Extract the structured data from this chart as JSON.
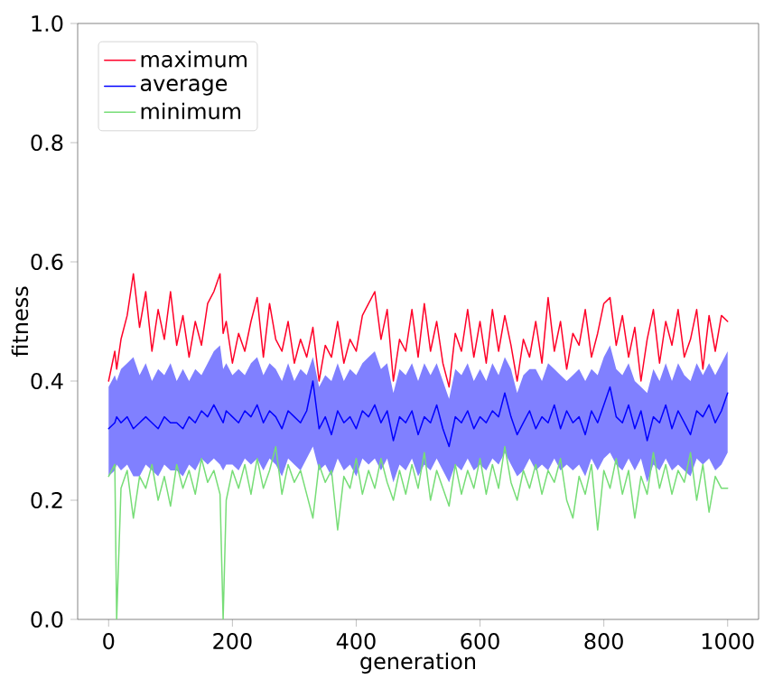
{
  "chart_data": {
    "type": "line",
    "xlabel": "generation",
    "ylabel": "fitness",
    "x": [
      0,
      10,
      13,
      20,
      30,
      40,
      50,
      60,
      70,
      80,
      90,
      100,
      110,
      120,
      130,
      140,
      150,
      160,
      170,
      180,
      185,
      190,
      200,
      210,
      220,
      230,
      240,
      250,
      260,
      270,
      280,
      290,
      300,
      310,
      320,
      330,
      340,
      350,
      360,
      370,
      380,
      390,
      400,
      410,
      420,
      430,
      440,
      450,
      460,
      470,
      480,
      490,
      500,
      510,
      520,
      530,
      540,
      550,
      560,
      570,
      580,
      590,
      600,
      610,
      620,
      630,
      640,
      650,
      660,
      670,
      680,
      690,
      700,
      710,
      720,
      730,
      740,
      750,
      760,
      770,
      780,
      790,
      800,
      810,
      820,
      830,
      840,
      850,
      860,
      870,
      880,
      890,
      900,
      910,
      920,
      930,
      940,
      950,
      960,
      970,
      980,
      990,
      1000
    ],
    "series": [
      {
        "name": "maximum",
        "color": "#ff0028",
        "values": [
          0.4,
          0.45,
          0.42,
          0.47,
          0.51,
          0.58,
          0.49,
          0.55,
          0.45,
          0.52,
          0.47,
          0.55,
          0.46,
          0.51,
          0.44,
          0.5,
          0.46,
          0.53,
          0.55,
          0.58,
          0.48,
          0.5,
          0.43,
          0.48,
          0.45,
          0.5,
          0.54,
          0.44,
          0.53,
          0.47,
          0.45,
          0.5,
          0.43,
          0.47,
          0.44,
          0.49,
          0.4,
          0.46,
          0.44,
          0.5,
          0.43,
          0.47,
          0.45,
          0.51,
          0.53,
          0.55,
          0.47,
          0.52,
          0.4,
          0.47,
          0.45,
          0.52,
          0.44,
          0.53,
          0.45,
          0.5,
          0.43,
          0.39,
          0.48,
          0.45,
          0.52,
          0.44,
          0.5,
          0.43,
          0.52,
          0.45,
          0.51,
          0.46,
          0.4,
          0.47,
          0.44,
          0.5,
          0.43,
          0.54,
          0.45,
          0.5,
          0.42,
          0.48,
          0.46,
          0.52,
          0.44,
          0.48,
          0.53,
          0.54,
          0.46,
          0.51,
          0.44,
          0.49,
          0.4,
          0.47,
          0.52,
          0.43,
          0.5,
          0.46,
          0.52,
          0.44,
          0.47,
          0.52,
          0.42,
          0.51,
          0.45,
          0.51,
          0.5
        ]
      },
      {
        "name": "average",
        "color": "#0000ff",
        "values": [
          0.32,
          0.33,
          0.34,
          0.33,
          0.34,
          0.32,
          0.33,
          0.34,
          0.33,
          0.32,
          0.34,
          0.33,
          0.33,
          0.32,
          0.34,
          0.33,
          0.35,
          0.34,
          0.36,
          0.34,
          0.33,
          0.35,
          0.34,
          0.33,
          0.35,
          0.34,
          0.36,
          0.33,
          0.35,
          0.34,
          0.32,
          0.35,
          0.34,
          0.33,
          0.35,
          0.4,
          0.32,
          0.34,
          0.31,
          0.35,
          0.33,
          0.34,
          0.32,
          0.35,
          0.34,
          0.36,
          0.33,
          0.35,
          0.3,
          0.34,
          0.33,
          0.35,
          0.31,
          0.34,
          0.33,
          0.36,
          0.32,
          0.29,
          0.34,
          0.33,
          0.35,
          0.32,
          0.34,
          0.33,
          0.35,
          0.34,
          0.38,
          0.34,
          0.31,
          0.33,
          0.35,
          0.32,
          0.34,
          0.33,
          0.36,
          0.32,
          0.35,
          0.33,
          0.34,
          0.31,
          0.35,
          0.33,
          0.36,
          0.39,
          0.34,
          0.33,
          0.36,
          0.32,
          0.35,
          0.3,
          0.34,
          0.33,
          0.36,
          0.32,
          0.35,
          0.33,
          0.31,
          0.35,
          0.34,
          0.36,
          0.33,
          0.35,
          0.38
        ],
        "lower": [
          0.24,
          0.25,
          0.26,
          0.25,
          0.26,
          0.24,
          0.24,
          0.26,
          0.25,
          0.24,
          0.26,
          0.25,
          0.25,
          0.24,
          0.26,
          0.25,
          0.27,
          0.26,
          0.27,
          0.26,
          0.25,
          0.26,
          0.26,
          0.25,
          0.27,
          0.26,
          0.27,
          0.25,
          0.27,
          0.26,
          0.24,
          0.27,
          0.26,
          0.25,
          0.27,
          0.29,
          0.25,
          0.26,
          0.24,
          0.27,
          0.25,
          0.26,
          0.24,
          0.27,
          0.26,
          0.27,
          0.25,
          0.27,
          0.23,
          0.26,
          0.25,
          0.27,
          0.24,
          0.26,
          0.25,
          0.27,
          0.25,
          0.23,
          0.26,
          0.25,
          0.27,
          0.25,
          0.26,
          0.25,
          0.27,
          0.26,
          0.28,
          0.26,
          0.24,
          0.25,
          0.27,
          0.25,
          0.26,
          0.25,
          0.27,
          0.25,
          0.26,
          0.25,
          0.26,
          0.24,
          0.27,
          0.25,
          0.27,
          0.28,
          0.26,
          0.25,
          0.27,
          0.25,
          0.27,
          0.23,
          0.26,
          0.25,
          0.27,
          0.25,
          0.26,
          0.25,
          0.24,
          0.27,
          0.26,
          0.27,
          0.25,
          0.26,
          0.28
        ],
        "upper": [
          0.39,
          0.41,
          0.4,
          0.42,
          0.43,
          0.44,
          0.41,
          0.43,
          0.4,
          0.42,
          0.41,
          0.43,
          0.4,
          0.42,
          0.4,
          0.42,
          0.41,
          0.43,
          0.45,
          0.46,
          0.42,
          0.43,
          0.41,
          0.42,
          0.41,
          0.43,
          0.44,
          0.41,
          0.43,
          0.42,
          0.4,
          0.43,
          0.4,
          0.42,
          0.41,
          0.44,
          0.39,
          0.41,
          0.4,
          0.43,
          0.4,
          0.42,
          0.41,
          0.43,
          0.44,
          0.45,
          0.42,
          0.43,
          0.38,
          0.42,
          0.41,
          0.43,
          0.4,
          0.43,
          0.41,
          0.43,
          0.4,
          0.37,
          0.42,
          0.41,
          0.43,
          0.4,
          0.42,
          0.4,
          0.43,
          0.41,
          0.44,
          0.42,
          0.38,
          0.41,
          0.42,
          0.42,
          0.4,
          0.43,
          0.42,
          0.41,
          0.4,
          0.41,
          0.42,
          0.4,
          0.42,
          0.41,
          0.44,
          0.46,
          0.42,
          0.41,
          0.43,
          0.4,
          0.39,
          0.38,
          0.42,
          0.4,
          0.43,
          0.4,
          0.43,
          0.41,
          0.4,
          0.43,
          0.41,
          0.43,
          0.41,
          0.43,
          0.45
        ]
      },
      {
        "name": "minimum",
        "color": "#77dd77",
        "values": [
          0.24,
          0.26,
          0.0,
          0.22,
          0.25,
          0.17,
          0.24,
          0.22,
          0.26,
          0.2,
          0.24,
          0.19,
          0.26,
          0.22,
          0.25,
          0.21,
          0.27,
          0.23,
          0.25,
          0.21,
          0.0,
          0.2,
          0.25,
          0.22,
          0.26,
          0.21,
          0.27,
          0.22,
          0.25,
          0.29,
          0.21,
          0.26,
          0.23,
          0.25,
          0.21,
          0.17,
          0.26,
          0.23,
          0.25,
          0.15,
          0.24,
          0.22,
          0.27,
          0.21,
          0.25,
          0.22,
          0.27,
          0.23,
          0.2,
          0.25,
          0.21,
          0.26,
          0.22,
          0.28,
          0.2,
          0.25,
          0.22,
          0.19,
          0.26,
          0.21,
          0.25,
          0.22,
          0.27,
          0.21,
          0.26,
          0.22,
          0.29,
          0.23,
          0.2,
          0.25,
          0.22,
          0.26,
          0.21,
          0.25,
          0.23,
          0.27,
          0.2,
          0.17,
          0.24,
          0.21,
          0.26,
          0.15,
          0.25,
          0.22,
          0.27,
          0.21,
          0.25,
          0.17,
          0.24,
          0.21,
          0.28,
          0.22,
          0.26,
          0.21,
          0.25,
          0.23,
          0.28,
          0.2,
          0.26,
          0.18,
          0.24,
          0.22,
          0.22
        ]
      }
    ],
    "xlim": [
      -50,
      1050
    ],
    "ylim": [
      0,
      1
    ],
    "xticks": [
      0,
      200,
      400,
      600,
      800,
      1000
    ],
    "yticks": [
      {
        "value": 0,
        "label": "0.0"
      },
      0.2,
      0.4,
      0.6,
      0.8,
      {
        "value": 1,
        "label": "1.0"
      }
    ],
    "legend": "top left",
    "grid": false,
    "line_style": "solid"
  }
}
